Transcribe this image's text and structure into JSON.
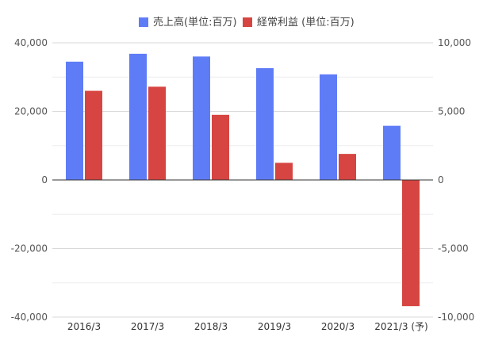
{
  "chart_data": {
    "type": "bar",
    "categories": [
      "2016/3",
      "2017/3",
      "2018/3",
      "2019/3",
      "2020/3",
      "2021/3 (予)"
    ],
    "series": [
      {
        "name": "売上高(単位:百万)",
        "axis": "left",
        "color": "#5f7cf7",
        "values": [
          34500,
          36800,
          36000,
          32600,
          30800,
          15800
        ]
      },
      {
        "name": "経常利益 (単位:百万)",
        "axis": "right",
        "color": "#d64541",
        "values": [
          6500,
          6800,
          4750,
          1250,
          1900,
          -9200
        ]
      }
    ],
    "y_left": {
      "ylim": [
        -40000,
        40000
      ],
      "ticks": [
        "40,000",
        "20,000",
        "0",
        "-20,000",
        "-40,000"
      ],
      "tick_values": [
        40000,
        20000,
        0,
        -20000,
        -40000
      ]
    },
    "y_right": {
      "ylim": [
        -10000,
        10000
      ],
      "ticks": [
        "10,000",
        "5,000",
        "0",
        "-5,000",
        "-10,000"
      ],
      "tick_values": [
        10000,
        5000,
        0,
        -5000,
        -10000
      ]
    },
    "grid": true,
    "legend_position": "top"
  }
}
